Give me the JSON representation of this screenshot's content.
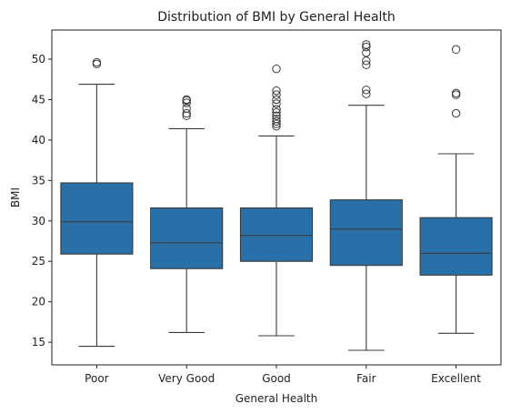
{
  "chart_data": {
    "type": "box",
    "title": "Distribution of BMI by General Health",
    "xlabel": "General Health",
    "ylabel": "BMI",
    "ylim": [
      12.2,
      53.6
    ],
    "yticks": [
      15,
      20,
      25,
      30,
      35,
      40,
      45,
      50
    ],
    "grid": false,
    "legend": "none",
    "box_color": "#2a70a8",
    "line_color": "#3a3a3a",
    "categories": [
      "Poor",
      "Very Good",
      "Good",
      "Fair",
      "Excellent"
    ],
    "boxes": [
      {
        "category": "Poor",
        "whisker_low": 14.5,
        "q1": 25.9,
        "median": 29.9,
        "q3": 34.7,
        "whisker_high": 46.9,
        "outliers": [
          49.4,
          49.6
        ]
      },
      {
        "category": "Very Good",
        "whisker_low": 16.2,
        "q1": 24.1,
        "median": 27.3,
        "q3": 31.6,
        "whisker_high": 41.4,
        "outliers": [
          43.0,
          43.3,
          43.9,
          44.6,
          44.9,
          45.0
        ]
      },
      {
        "category": "Good",
        "whisker_low": 15.8,
        "q1": 25.0,
        "median": 28.2,
        "q3": 31.6,
        "whisker_high": 40.5,
        "outliers": [
          41.7,
          42.0,
          42.3,
          42.6,
          43.0,
          43.4,
          43.8,
          44.5,
          45.0,
          45.6,
          46.1,
          48.8
        ]
      },
      {
        "category": "Fair",
        "whisker_low": 14.0,
        "q1": 24.5,
        "median": 29.0,
        "q3": 32.6,
        "whisker_high": 44.3,
        "outliers": [
          45.7,
          46.2,
          49.3,
          49.8,
          50.8,
          51.5,
          51.8
        ]
      },
      {
        "category": "Excellent",
        "whisker_low": 16.1,
        "q1": 23.3,
        "median": 26.0,
        "q3": 30.4,
        "whisker_high": 38.3,
        "outliers": [
          43.3,
          45.6,
          45.8,
          51.2
        ]
      }
    ]
  }
}
